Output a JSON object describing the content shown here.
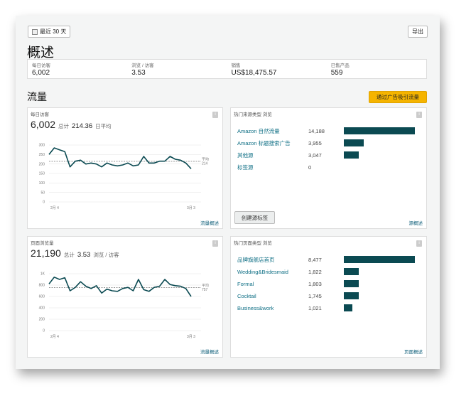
{
  "toolbar": {
    "date_range": "最近 30 天",
    "export": "导出"
  },
  "overview": {
    "title": "概述",
    "stats": [
      {
        "label": "每日访客",
        "value": "6,002"
      },
      {
        "label": "浏览 / 访客",
        "value": "3.53"
      },
      {
        "label": "销售",
        "value": "US$18,475.57"
      },
      {
        "label": "已售产品",
        "value": "559"
      }
    ]
  },
  "traffic": {
    "title": "流量",
    "ads_button": "通过广告吸引流量"
  },
  "visitors_panel": {
    "title": "每日访客",
    "total": "6,002",
    "total_suffix": "总计",
    "avg": "214.36",
    "avg_suffix": "日平均",
    "link": "流量概述",
    "chart_data": {
      "type": "line",
      "x_start": "2月 4",
      "x_end": "3月 3",
      "y_ticks": [
        "300",
        "250",
        "200",
        "150",
        "100",
        "50",
        "0"
      ],
      "ylim": [
        0,
        300
      ],
      "avg_label": "平均",
      "avg_value": 214,
      "values": [
        250,
        285,
        275,
        265,
        185,
        215,
        220,
        200,
        205,
        200,
        185,
        205,
        195,
        190,
        195,
        205,
        190,
        195,
        240,
        205,
        205,
        215,
        215,
        240,
        225,
        220,
        205,
        175
      ]
    }
  },
  "sources_panel": {
    "title": "热门来源类型 浏览",
    "rows": [
      {
        "name": "Amazon 自然流量",
        "count": "14,188",
        "value": 14188
      },
      {
        "name": "Amazon 标题搜索广告",
        "count": "3,955",
        "value": 3955
      },
      {
        "name": "其他源",
        "count": "3,047",
        "value": 3047
      },
      {
        "name": "标签源",
        "count": "0",
        "value": 0
      }
    ],
    "button": "创建源标签",
    "link": "源概述"
  },
  "pageviews_panel": {
    "title": "页面浏览量",
    "total": "21,190",
    "total_suffix": "总计",
    "avg": "3.53",
    "avg_suffix": "浏览 / 访客",
    "link": "流量概述",
    "chart_data": {
      "type": "line",
      "x_start": "2月 4",
      "x_end": "3月 3",
      "y_ticks": [
        "1K",
        "800",
        "600",
        "400",
        "200",
        "0"
      ],
      "ylim": [
        0,
        1000
      ],
      "avg_label": "平均",
      "avg_value": 757,
      "values": [
        820,
        940,
        900,
        930,
        700,
        760,
        860,
        780,
        740,
        790,
        660,
        730,
        700,
        690,
        740,
        760,
        700,
        900,
        720,
        690,
        760,
        780,
        900,
        810,
        790,
        780,
        740,
        600
      ]
    }
  },
  "pages_panel": {
    "title": "热门页面类型 浏览",
    "rows": [
      {
        "name": "品牌旗舰店首页",
        "count": "8,477",
        "value": 8477
      },
      {
        "name": "Wedding&Bridesmaid",
        "count": "1,822",
        "value": 1822
      },
      {
        "name": "Formal",
        "count": "1,803",
        "value": 1803
      },
      {
        "name": "Cocktail",
        "count": "1,745",
        "value": 1745
      },
      {
        "name": "Business&work",
        "count": "1,021",
        "value": 1021
      }
    ],
    "link": "页面概述"
  }
}
